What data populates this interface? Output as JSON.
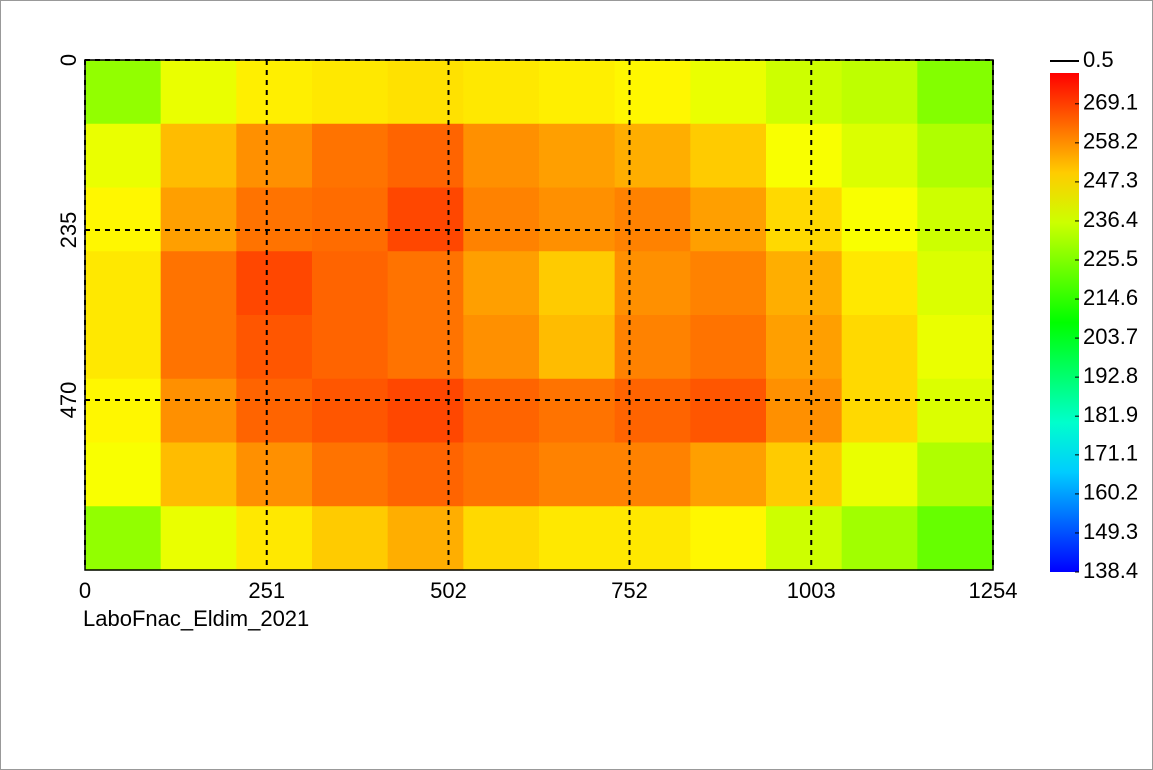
{
  "chart_data": {
    "type": "heatmap",
    "caption": "LaboFnac_Eldim_2021",
    "xlim": [
      0,
      1254
    ],
    "xticks": [
      0,
      251,
      502,
      752,
      1003,
      1254
    ],
    "ylim": [
      0,
      705
    ],
    "yticks": [
      0,
      235,
      470
    ],
    "y_inverted": true,
    "grid": true,
    "colorbar_top_label": 0.5,
    "clim": [
      138.4,
      277.7
    ],
    "cticks": [
      269.1,
      258.2,
      247.3,
      236.4,
      225.5,
      214.6,
      203.7,
      192.8,
      181.9,
      171.1,
      160.2,
      149.3,
      138.4
    ],
    "values": [
      [
        228,
        240,
        245,
        246,
        247,
        246,
        245,
        244,
        240,
        236,
        234,
        226
      ],
      [
        240,
        252,
        258,
        262,
        264,
        258,
        256,
        254,
        250,
        242,
        238,
        232
      ],
      [
        244,
        256,
        262,
        263,
        268,
        260,
        258,
        260,
        256,
        248,
        242,
        236
      ],
      [
        246,
        262,
        268,
        264,
        262,
        256,
        250,
        258,
        260,
        254,
        246,
        238
      ],
      [
        246,
        262,
        266,
        264,
        262,
        258,
        252,
        260,
        262,
        256,
        248,
        240
      ],
      [
        244,
        258,
        264,
        266,
        268,
        264,
        262,
        264,
        266,
        258,
        248,
        238
      ],
      [
        242,
        252,
        258,
        262,
        264,
        262,
        260,
        260,
        256,
        250,
        240,
        232
      ],
      [
        228,
        240,
        246,
        250,
        254,
        248,
        246,
        246,
        244,
        236,
        230,
        222
      ]
    ]
  }
}
